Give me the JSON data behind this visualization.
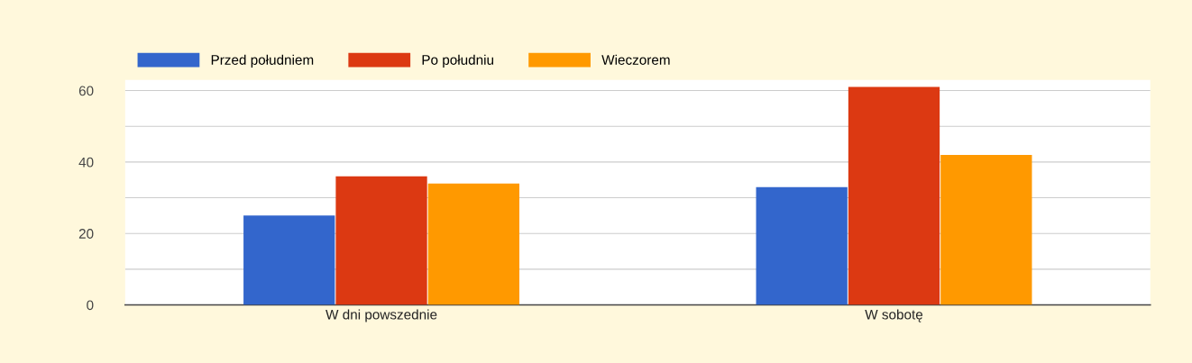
{
  "chart_data": {
    "type": "bar",
    "categories": [
      "W dni powszednie",
      "W sobotę"
    ],
    "series": [
      {
        "name": "Przed południem",
        "color": "#3366cc",
        "values": [
          25,
          33
        ]
      },
      {
        "name": "Po południu",
        "color": "#dc3912",
        "values": [
          36,
          61
        ]
      },
      {
        "name": "Wieczorem",
        "color": "#ff9900",
        "values": [
          34,
          42
        ]
      }
    ],
    "ylim": [
      0,
      63
    ],
    "yticks": [
      0,
      {
        "value": 10,
        "label": null
      },
      20,
      {
        "value": 30,
        "label": null
      },
      40,
      {
        "value": 50,
        "label": null
      },
      60
    ],
    "grid": "y",
    "legend": "top left"
  }
}
